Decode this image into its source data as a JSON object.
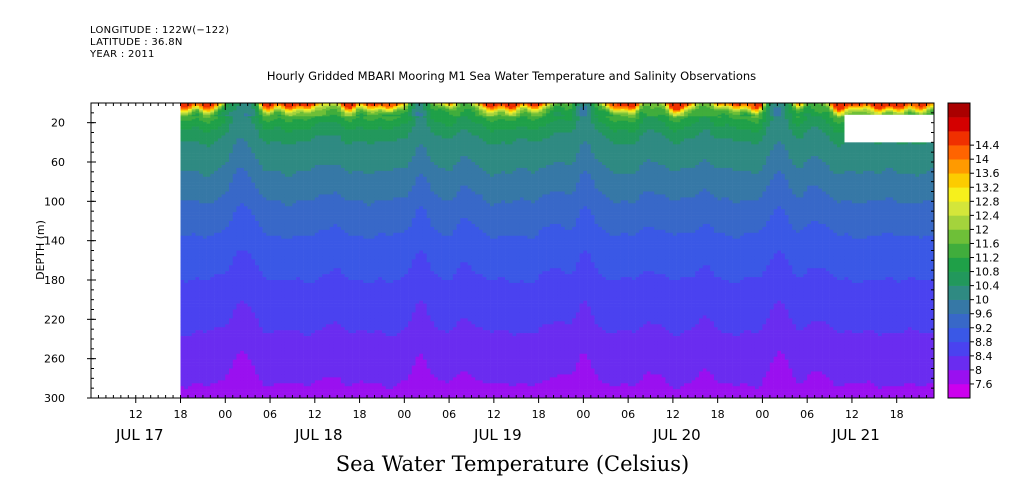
{
  "header": {
    "longitude": "LONGITUDE : 122W(−122)",
    "latitude": "LATITUDE : 36.8N",
    "year": "YEAR : 2011"
  },
  "chart_data": {
    "type": "heatmap",
    "title": "Hourly Gridded MBARI Mooring M1 Sea Water Temperature and Salinity Observations",
    "xlabel": "",
    "ylabel": "DEPTH (m)",
    "colorbar_label": "Sea Water Temperature (Celsius)",
    "x_start": "2011-07-17T06:00",
    "x_end": "2011-07-21T23:00",
    "data_start": "2011-07-17T18:00",
    "ylim": [
      300,
      0
    ],
    "y_ticks": [
      20,
      60,
      100,
      140,
      180,
      220,
      260,
      300
    ],
    "x_hour_ticks": [
      {
        "t": "2011-07-17T12:00",
        "label": "12"
      },
      {
        "t": "2011-07-17T18:00",
        "label": "18"
      },
      {
        "t": "2011-07-18T00:00",
        "label": "00"
      },
      {
        "t": "2011-07-18T06:00",
        "label": "06"
      },
      {
        "t": "2011-07-18T12:00",
        "label": "12"
      },
      {
        "t": "2011-07-18T18:00",
        "label": "18"
      },
      {
        "t": "2011-07-19T00:00",
        "label": "00"
      },
      {
        "t": "2011-07-19T06:00",
        "label": "06"
      },
      {
        "t": "2011-07-19T12:00",
        "label": "12"
      },
      {
        "t": "2011-07-19T18:00",
        "label": "18"
      },
      {
        "t": "2011-07-20T00:00",
        "label": "00"
      },
      {
        "t": "2011-07-20T06:00",
        "label": "06"
      },
      {
        "t": "2011-07-20T12:00",
        "label": "12"
      },
      {
        "t": "2011-07-20T18:00",
        "label": "18"
      },
      {
        "t": "2011-07-21T00:00",
        "label": "00"
      },
      {
        "t": "2011-07-21T06:00",
        "label": "06"
      },
      {
        "t": "2011-07-21T12:00",
        "label": "12"
      },
      {
        "t": "2011-07-21T18:00",
        "label": "18"
      }
    ],
    "x_day_labels": [
      {
        "t": "2011-07-17T12:00",
        "label": "JUL 17"
      },
      {
        "t": "2011-07-18T12:00",
        "label": "JUL 18"
      },
      {
        "t": "2011-07-19T12:00",
        "label": "JUL 19"
      },
      {
        "t": "2011-07-20T12:00",
        "label": "JUL 20"
      },
      {
        "t": "2011-07-21T12:00",
        "label": "JUL 21"
      }
    ],
    "colorbar": {
      "levels": [
        7.6,
        8,
        8.4,
        8.8,
        9.2,
        9.6,
        10,
        10.4,
        10.8,
        11.2,
        11.6,
        12,
        12.4,
        12.8,
        13.2,
        13.6,
        14,
        14.4
      ],
      "colors": [
        "#cc00ee",
        "#9a10f0",
        "#6a2cf0",
        "#4a42f0",
        "#3a58e6",
        "#3868c8",
        "#3678a6",
        "#2f8a82",
        "#22985c",
        "#1fa048",
        "#40ad3c",
        "#6ebf38",
        "#a4d33c",
        "#d4e63a",
        "#f6f01c",
        "#fccc00",
        "#ff9a00",
        "#ff6400",
        "#f03000",
        "#d40000",
        "#aa0000"
      ]
    },
    "profile": [
      {
        "depth": 2,
        "temp": 14.6
      },
      {
        "depth": 5,
        "temp": 13.6
      },
      {
        "depth": 8,
        "temp": 12.4
      },
      {
        "depth": 11,
        "temp": 11.7
      },
      {
        "depth": 15,
        "temp": 11.3
      },
      {
        "depth": 25,
        "temp": 10.85
      },
      {
        "depth": 40,
        "temp": 10.4
      },
      {
        "depth": 60,
        "temp": 10.1
      },
      {
        "depth": 80,
        "temp": 9.9
      },
      {
        "depth": 100,
        "temp": 9.6
      },
      {
        "depth": 120,
        "temp": 9.35
      },
      {
        "depth": 140,
        "temp": 9.15
      },
      {
        "depth": 160,
        "temp": 8.95
      },
      {
        "depth": 180,
        "temp": 8.8
      },
      {
        "depth": 200,
        "temp": 8.65
      },
      {
        "depth": 220,
        "temp": 8.5
      },
      {
        "depth": 240,
        "temp": 8.35
      },
      {
        "depth": 260,
        "temp": 8.2
      },
      {
        "depth": 280,
        "temp": 8.05
      },
      {
        "depth": 300,
        "temp": 7.9
      }
    ],
    "cold_events": [
      {
        "t": "2011-07-18T01:00",
        "strength": 0.35
      },
      {
        "t": "2011-07-18T02:30",
        "strength": 0.7
      },
      {
        "t": "2011-07-18T14:00",
        "strength": 0.25
      },
      {
        "t": "2011-07-19T02:00",
        "strength": 0.75
      },
      {
        "t": "2011-07-19T08:00",
        "strength": 0.4
      },
      {
        "t": "2011-07-19T20:00",
        "strength": 0.3
      },
      {
        "t": "2011-07-20T00:00",
        "strength": 0.8
      },
      {
        "t": "2011-07-20T09:00",
        "strength": 0.3
      },
      {
        "t": "2011-07-20T16:00",
        "strength": 0.35
      },
      {
        "t": "2011-07-21T02:00",
        "strength": 0.85
      },
      {
        "t": "2011-07-21T07:00",
        "strength": 0.4
      }
    ],
    "missing_block": {
      "t_start": "2011-07-21T11:00",
      "t_end": "2011-07-21T23:00",
      "depth_start": 12,
      "depth_end": 40
    }
  },
  "bottom_title": "Sea Water Temperature (Celsius)"
}
